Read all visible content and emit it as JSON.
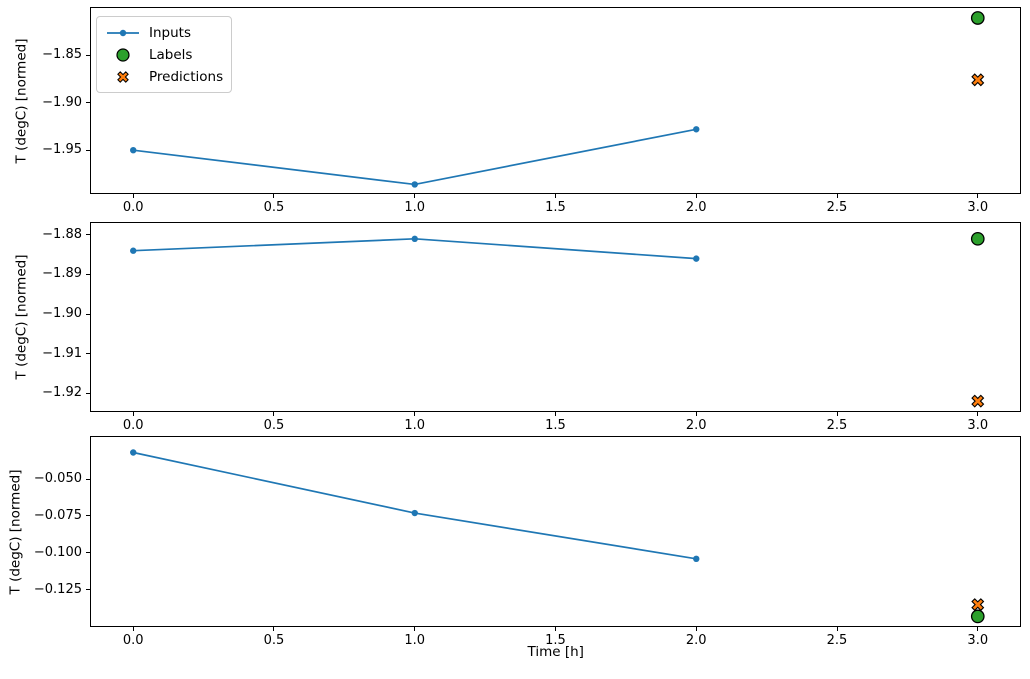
{
  "figure": {
    "background": "#ffffff",
    "xlabel": "Time [h]",
    "colors": {
      "inputs": "#1f77b4",
      "labels": "#2ca02c",
      "predictions": "#ff7f0e",
      "marker_edge": "#000000",
      "axis": "#000000",
      "legend_border": "#cccccc"
    },
    "legend": {
      "items": [
        {
          "label": "Inputs",
          "marker": "line-dot-icon",
          "color": "#1f77b4"
        },
        {
          "label": "Labels",
          "marker": "circle-icon",
          "color": "#2ca02c"
        },
        {
          "label": "Predictions",
          "marker": "x-icon",
          "color": "#ff7f0e"
        }
      ]
    }
  },
  "chart_data": [
    {
      "type": "line",
      "ylabel": "T (degC) [normed]",
      "xlim": [
        -0.15,
        3.15
      ],
      "ylim": [
        -1.995,
        -1.8005
      ],
      "grid": false,
      "xticks": {
        "values": [
          0,
          0.5,
          1,
          1.5,
          2,
          2.5,
          3
        ],
        "labels": [
          "0.0",
          "0.5",
          "1.0",
          "1.5",
          "2.0",
          "2.5",
          "3.0"
        ]
      },
      "yticks": {
        "values": [
          -1.85,
          -1.9,
          -1.95
        ],
        "labels": [
          "−1.85",
          "−1.90",
          "−1.95"
        ]
      },
      "series": [
        {
          "name": "Inputs",
          "kind": "line",
          "x": [
            0,
            1,
            2
          ],
          "y": [
            -1.95,
            -1.986,
            -1.928
          ]
        },
        {
          "name": "Labels",
          "kind": "circle",
          "x": [
            3
          ],
          "y": [
            -1.811
          ]
        },
        {
          "name": "Predictions",
          "kind": "x",
          "x": [
            3
          ],
          "y": [
            -1.876
          ]
        }
      ]
    },
    {
      "type": "line",
      "ylabel": "T (degC) [normed]",
      "xlim": [
        -0.15,
        3.15
      ],
      "ylim": [
        -1.9245,
        -1.877
      ],
      "grid": false,
      "xticks": {
        "values": [
          0,
          0.5,
          1,
          1.5,
          2,
          2.5,
          3
        ],
        "labels": [
          "0.0",
          "0.5",
          "1.0",
          "1.5",
          "2.0",
          "2.5",
          "3.0"
        ]
      },
      "yticks": {
        "values": [
          -1.88,
          -1.89,
          -1.9,
          -1.91,
          -1.92
        ],
        "labels": [
          "−1.88",
          "−1.89",
          "−1.90",
          "−1.91",
          "−1.92"
        ]
      },
      "series": [
        {
          "name": "Inputs",
          "kind": "line",
          "x": [
            0,
            1,
            2
          ],
          "y": [
            -1.884,
            -1.881,
            -1.886
          ]
        },
        {
          "name": "Labels",
          "kind": "circle",
          "x": [
            3
          ],
          "y": [
            -1.881
          ]
        },
        {
          "name": "Predictions",
          "kind": "x",
          "x": [
            3
          ],
          "y": [
            -1.922
          ]
        }
      ]
    },
    {
      "type": "line",
      "ylabel": "T (degC) [normed]",
      "xlabel": "Time [h]",
      "xlim": [
        -0.15,
        3.15
      ],
      "ylim": [
        -0.1495,
        -0.0215
      ],
      "grid": false,
      "xticks": {
        "values": [
          0,
          0.5,
          1,
          1.5,
          2,
          2.5,
          3
        ],
        "labels": [
          "0.0",
          "0.5",
          "1.0",
          "1.5",
          "2.0",
          "2.5",
          "3.0"
        ]
      },
      "yticks": {
        "values": [
          -0.05,
          -0.075,
          -0.1,
          -0.125
        ],
        "labels": [
          "−0.050",
          "−0.075",
          "−0.100",
          "−0.125"
        ]
      },
      "series": [
        {
          "name": "Inputs",
          "kind": "line",
          "x": [
            0,
            1,
            2
          ],
          "y": [
            -0.032,
            -0.073,
            -0.104
          ]
        },
        {
          "name": "Labels",
          "kind": "circle",
          "x": [
            3
          ],
          "y": [
            -0.143
          ]
        },
        {
          "name": "Predictions",
          "kind": "x",
          "x": [
            3
          ],
          "y": [
            -0.135
          ]
        }
      ]
    }
  ]
}
